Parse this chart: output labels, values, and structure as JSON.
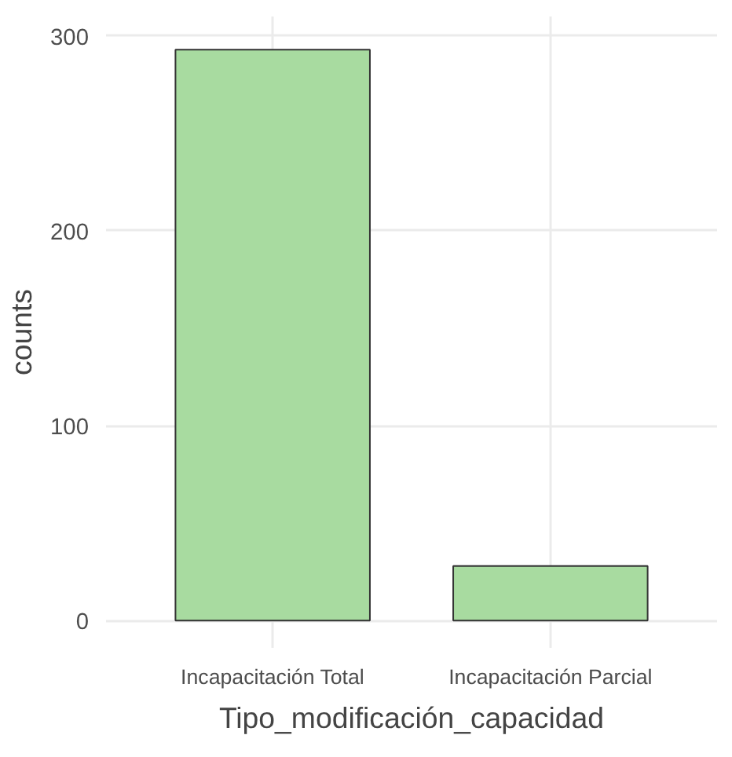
{
  "chart_data": {
    "type": "bar",
    "xlabel": "Tipo_modificación_capacidad",
    "ylabel": "counts",
    "categories": [
      "Incapacitación Total",
      "Incapacitación Parcial"
    ],
    "values": [
      293,
      28
    ],
    "color": "#a8dba0",
    "ylim": [
      -14,
      310
    ],
    "yticks": [
      0,
      100,
      200,
      300
    ],
    "grid": true
  }
}
